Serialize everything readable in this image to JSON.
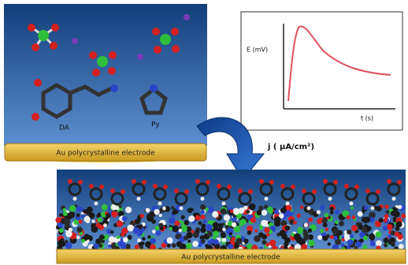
{
  "top_panel": {
    "electrode_label": "Au polycrystalline electrode",
    "molecule_labels": [
      "DA",
      "Py"
    ]
  },
  "inset": {
    "y_axis_label": "E (mV)",
    "x_axis_label": "t (s)"
  },
  "current_density_label": "j ( μA/cm²)",
  "bottom_panel": {
    "electrode_label": "Au polycrystalline electrode"
  }
}
